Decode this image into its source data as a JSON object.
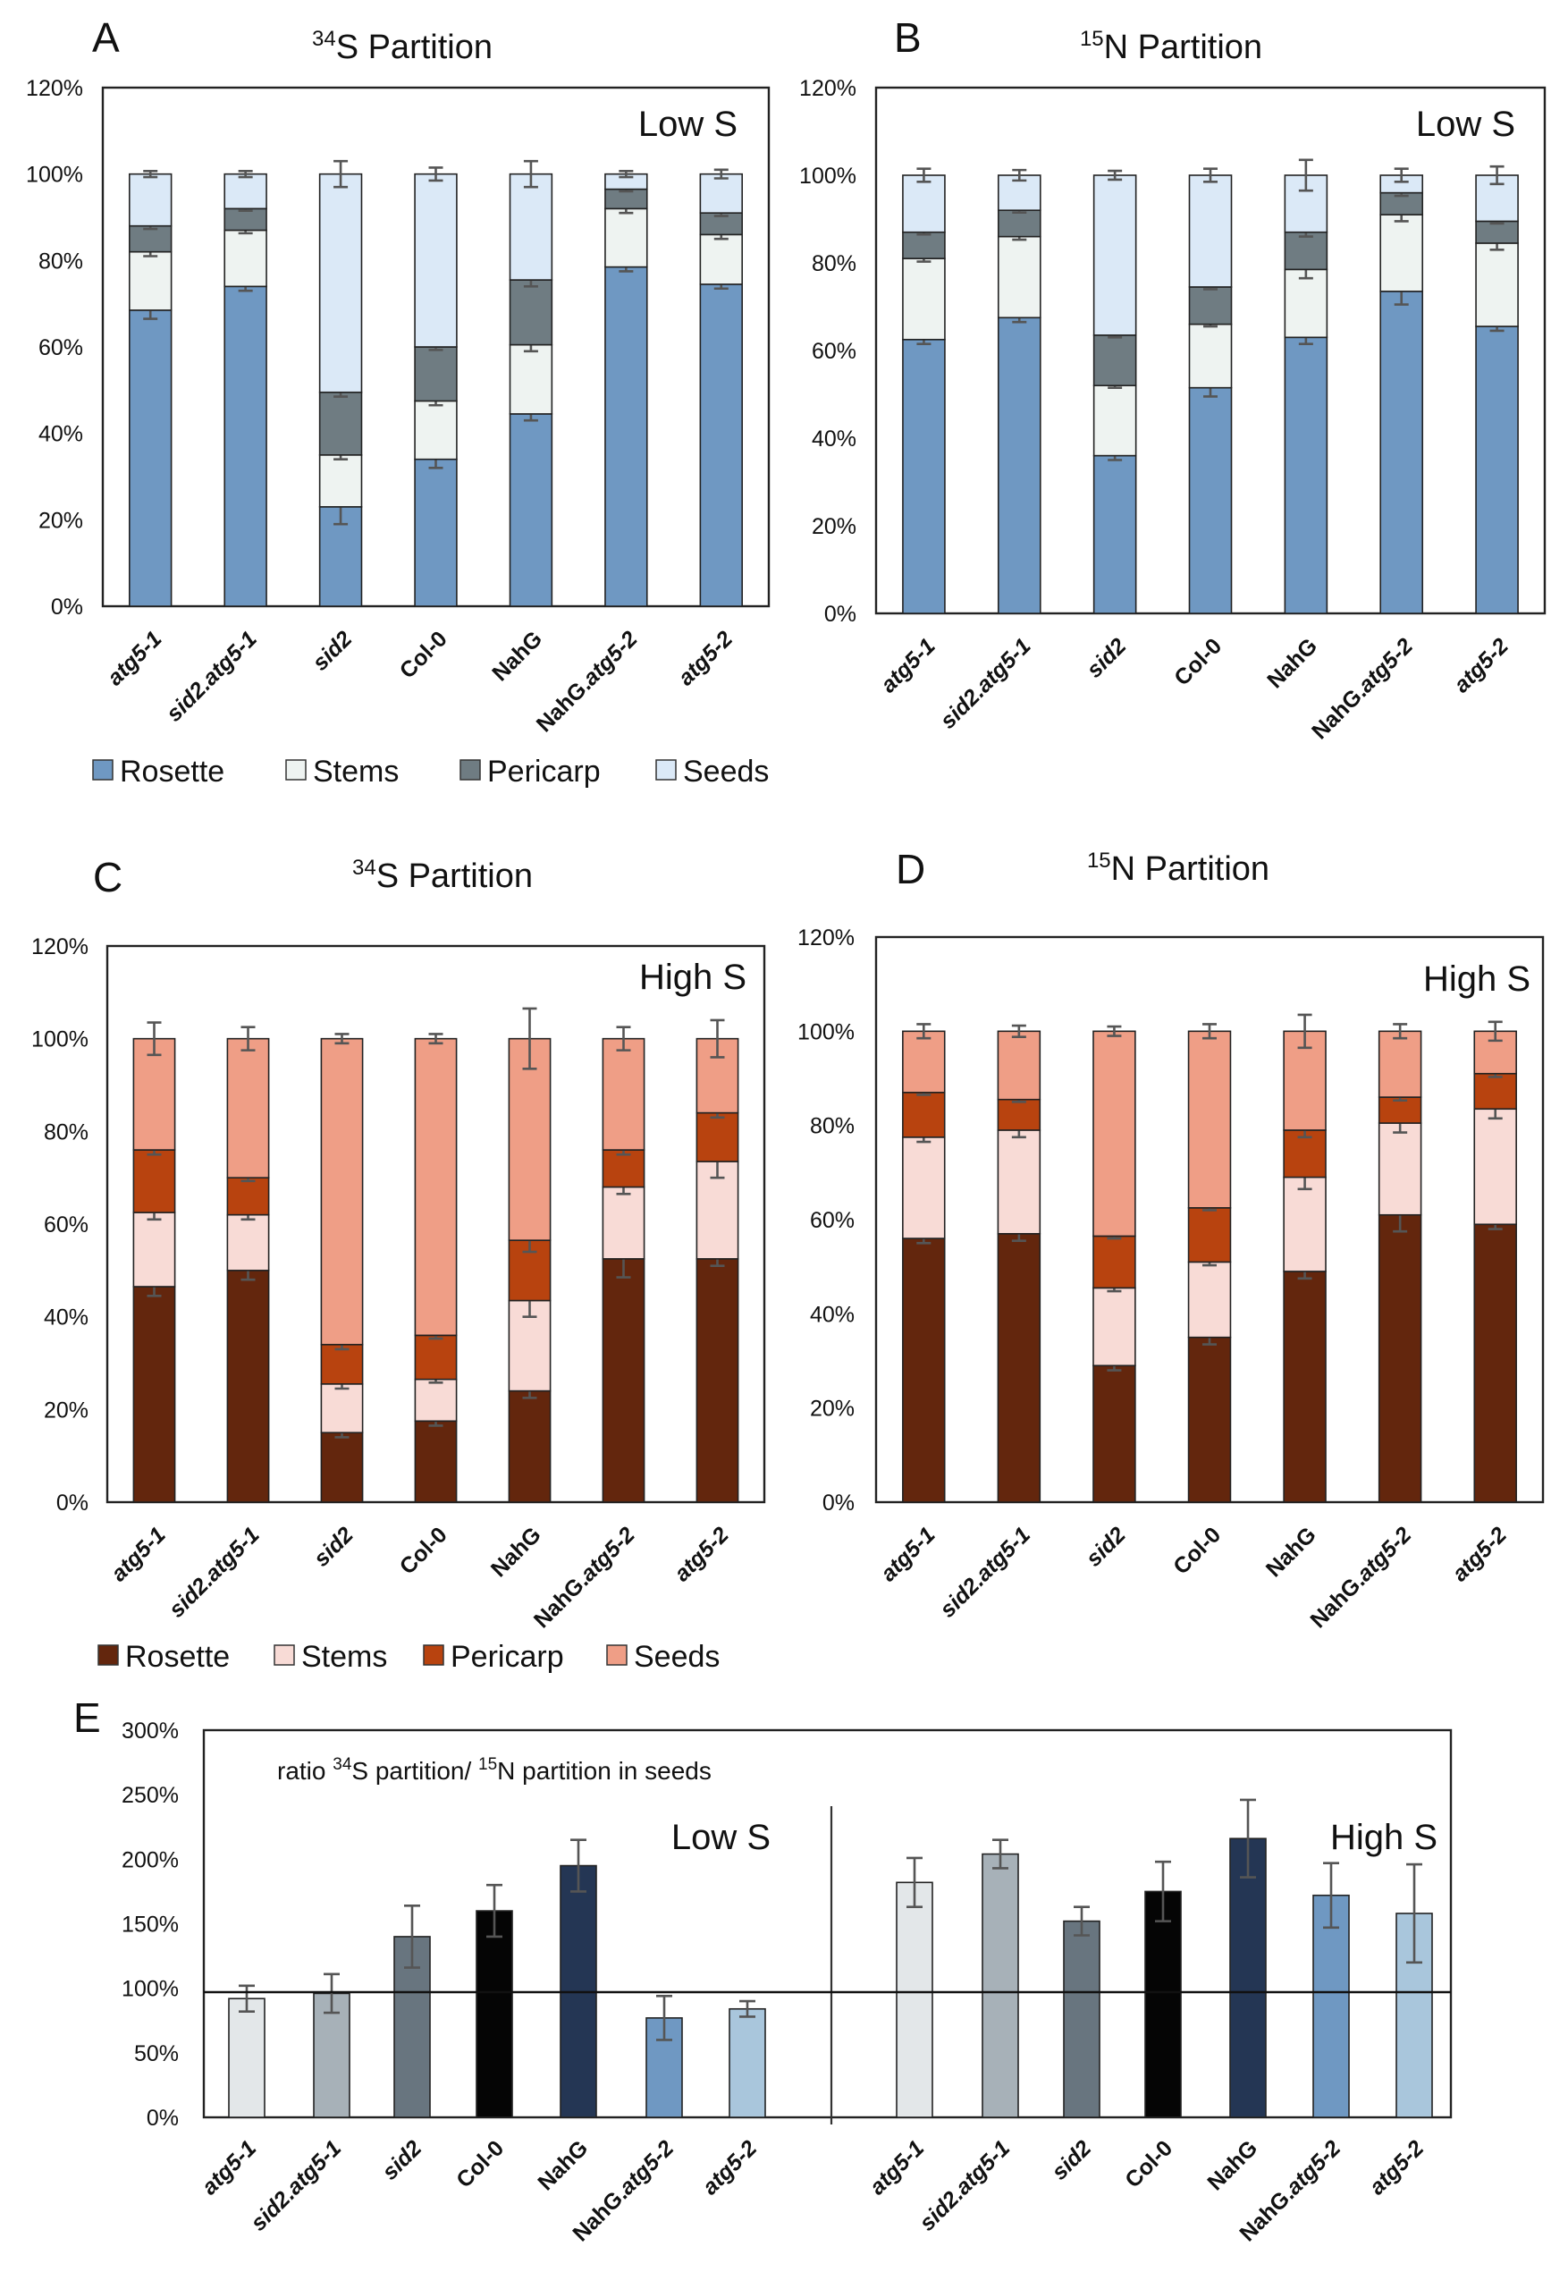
{
  "colors": {
    "low_s": {
      "Rosette": "#6f98c2",
      "Stems": "#eef3f1",
      "Pericarp": "#6f7c82",
      "Seeds": "#dbe9f7"
    },
    "high_s": {
      "Rosette": "#63260d",
      "Stems": "#f8dbd6",
      "Pericarp": "#b8430f",
      "Seeds": "#ef9e86"
    },
    "ratio": [
      "#e3e7e9",
      "#a7b1b8",
      "#68757f",
      "#050505",
      "#243654",
      "#6f98c2",
      "#a9c6dc"
    ]
  },
  "legend_low": [
    {
      "label": "Rosette",
      "color": "#6f98c2"
    },
    {
      "label": "Stems",
      "color": "#eef3f1"
    },
    {
      "label": "Pericarp",
      "color": "#6f7c82"
    },
    {
      "label": "Seeds",
      "color": "#dbe9f7"
    }
  ],
  "legend_high": [
    {
      "label": "Rosette",
      "color": "#63260d"
    },
    {
      "label": "Stems",
      "color": "#f8dbd6"
    },
    {
      "label": "Pericarp",
      "color": "#b8430f"
    },
    {
      "label": "Seeds",
      "color": "#ef9e86"
    }
  ],
  "chart_data": [
    {
      "panel": "A",
      "type": "bar",
      "stacked": true,
      "palette": "low_s",
      "title": "34S Partition",
      "title_sup": "34",
      "title_rest": "S Partition",
      "condition": "Low S",
      "legend": "legend_low",
      "categories": [
        "atg5-1",
        "sid2.atg5-1",
        "sid2",
        "Col-0",
        "NahG",
        "NahG.atg5-2",
        "atg5-2"
      ],
      "ylim": [
        0,
        120
      ],
      "yticks": [
        0,
        20,
        40,
        60,
        80,
        100,
        120
      ],
      "ytick_suffix": "%",
      "series": [
        {
          "name": "Rosette",
          "values": [
            68.5,
            74,
            23,
            34,
            44.5,
            78.5,
            74.5
          ]
        },
        {
          "name": "Stems",
          "values": [
            13.5,
            13,
            12,
            13.5,
            16,
            13.5,
            11.5
          ]
        },
        {
          "name": "Pericarp",
          "values": [
            6,
            5,
            14.5,
            12.5,
            15,
            4.5,
            5
          ]
        },
        {
          "name": "Seeds",
          "values": [
            12,
            8,
            50.5,
            40,
            24.5,
            3.5,
            9
          ]
        }
      ],
      "errors": [
        {
          "name": "Rosette",
          "values": [
            2,
            1,
            4,
            2,
            1.5,
            1,
            1
          ]
        },
        {
          "name": "Stems",
          "values": [
            1,
            0.7,
            1,
            1,
            1.5,
            1,
            1
          ]
        },
        {
          "name": "Pericarp",
          "values": [
            0.7,
            0.5,
            1,
            0.7,
            1.5,
            0.5,
            0.7
          ]
        },
        {
          "name": "Seeds",
          "values": [
            0.7,
            0.7,
            3,
            1.5,
            3,
            0.7,
            1
          ]
        }
      ]
    },
    {
      "panel": "B",
      "type": "bar",
      "stacked": true,
      "palette": "low_s",
      "title": "15N Partition",
      "title_sup": "15",
      "title_rest": "N Partition",
      "condition": "Low S",
      "legend": "legend_low",
      "categories": [
        "atg5-1",
        "sid2.atg5-1",
        "sid2",
        "Col-0",
        "NahG",
        "NahG.atg5-2",
        "atg5-2"
      ],
      "ylim": [
        0,
        120
      ],
      "yticks": [
        0,
        20,
        40,
        60,
        80,
        100,
        120
      ],
      "ytick_suffix": "%",
      "series": [
        {
          "name": "Rosette",
          "values": [
            62.5,
            67.5,
            36,
            51.5,
            63,
            73.5,
            65.5
          ]
        },
        {
          "name": "Stems",
          "values": [
            18.5,
            18.5,
            16,
            14.5,
            15.5,
            17.5,
            19
          ]
        },
        {
          "name": "Pericarp",
          "values": [
            6,
            6,
            11.5,
            8.5,
            8.5,
            5,
            5
          ]
        },
        {
          "name": "Seeds",
          "values": [
            13,
            8,
            36.5,
            25.5,
            13,
            4,
            10.5
          ]
        }
      ],
      "errors": [
        {
          "name": "Rosette",
          "values": [
            1,
            1,
            1,
            2,
            1.5,
            3,
            1
          ]
        },
        {
          "name": "Stems",
          "values": [
            0.7,
            0.7,
            0.5,
            0.5,
            2,
            1.5,
            1.5
          ]
        },
        {
          "name": "Pericarp",
          "values": [
            0.5,
            0.5,
            0.5,
            0.5,
            1,
            0.7,
            0.5
          ]
        },
        {
          "name": "Seeds",
          "values": [
            1.5,
            1.2,
            1,
            1.5,
            3.5,
            1.5,
            2
          ]
        }
      ]
    },
    {
      "panel": "C",
      "type": "bar",
      "stacked": true,
      "palette": "high_s",
      "title": "34S Partition",
      "title_sup": "34",
      "title_rest": "S Partition",
      "condition": "High S",
      "legend": "legend_high",
      "categories": [
        "atg5-1",
        "sid2.atg5-1",
        "sid2",
        "Col-0",
        "NahG",
        "NahG.atg5-2",
        "atg5-2"
      ],
      "ylim": [
        0,
        120
      ],
      "yticks": [
        0,
        20,
        40,
        60,
        80,
        100,
        120
      ],
      "ytick_suffix": "%",
      "series": [
        {
          "name": "Rosette",
          "values": [
            46.5,
            50,
            15,
            17.5,
            24,
            52.5,
            52.5
          ]
        },
        {
          "name": "Stems",
          "values": [
            16,
            12,
            10.5,
            9,
            19.5,
            15.5,
            21
          ]
        },
        {
          "name": "Pericarp",
          "values": [
            13.5,
            8,
            8.5,
            9.5,
            13,
            8,
            10.5
          ]
        },
        {
          "name": "Seeds",
          "values": [
            24,
            30,
            66,
            64,
            43.5,
            24,
            16
          ]
        }
      ],
      "errors": [
        {
          "name": "Rosette",
          "values": [
            2,
            2,
            1,
            1,
            1.5,
            4,
            1.5
          ]
        },
        {
          "name": "Stems",
          "values": [
            1.5,
            1,
            1,
            0.7,
            3.5,
            1.5,
            3.5
          ]
        },
        {
          "name": "Pericarp",
          "values": [
            1,
            0.7,
            1,
            0.7,
            2.5,
            1,
            1
          ]
        },
        {
          "name": "Seeds",
          "values": [
            3.5,
            2.5,
            1,
            1,
            6.5,
            2.5,
            4
          ]
        }
      ]
    },
    {
      "panel": "D",
      "type": "bar",
      "stacked": true,
      "palette": "high_s",
      "title": "15N Partition",
      "title_sup": "15",
      "title_rest": "N Partition",
      "condition": "High S",
      "legend": "legend_high",
      "categories": [
        "atg5-1",
        "sid2.atg5-1",
        "sid2",
        "Col-0",
        "NahG",
        "NahG.atg5-2",
        "atg5-2"
      ],
      "ylim": [
        0,
        120
      ],
      "yticks": [
        0,
        20,
        40,
        60,
        80,
        100,
        120
      ],
      "ytick_suffix": "%",
      "series": [
        {
          "name": "Rosette",
          "values": [
            56,
            57,
            29,
            35,
            49,
            61,
            59
          ]
        },
        {
          "name": "Stems",
          "values": [
            21.5,
            22,
            16.5,
            16,
            20,
            19.5,
            24.5
          ]
        },
        {
          "name": "Pericarp",
          "values": [
            9.5,
            6.5,
            11,
            11.5,
            10,
            5.5,
            7.5
          ]
        },
        {
          "name": "Seeds",
          "values": [
            13,
            14.5,
            43.5,
            37.5,
            21,
            14,
            9
          ]
        }
      ],
      "errors": [
        {
          "name": "Rosette",
          "values": [
            1,
            1.5,
            1,
            1.5,
            1.5,
            3.5,
            1
          ]
        },
        {
          "name": "Stems",
          "values": [
            1,
            1.5,
            0.7,
            0.7,
            2.5,
            2,
            2
          ]
        },
        {
          "name": "Pericarp",
          "values": [
            0.5,
            0.5,
            0.5,
            0.5,
            1.5,
            0.7,
            0.7
          ]
        },
        {
          "name": "Seeds",
          "values": [
            1.5,
            1.2,
            1,
            1.5,
            3.5,
            1.5,
            2
          ]
        }
      ]
    },
    {
      "panel": "E",
      "type": "bar",
      "stacked": false,
      "title": "ratio 34S partition/ 15N partition in seeds",
      "title_parts": [
        "ratio ",
        "34",
        "S partition/ ",
        "15",
        "N partition in seeds"
      ],
      "ylim": [
        0,
        300
      ],
      "yticks": [
        0,
        50,
        100,
        150,
        200,
        250,
        300
      ],
      "ytick_suffix": "%",
      "reference_line": 97,
      "groups": [
        {
          "condition": "Low S",
          "categories": [
            "atg5-1",
            "sid2.atg5-1",
            "sid2",
            "Col-0",
            "NahG",
            "NahG.atg5-2",
            "atg5-2"
          ],
          "values": [
            92,
            96,
            140,
            160,
            195,
            77,
            84
          ],
          "errors": [
            10,
            15,
            24,
            20,
            20,
            17,
            6
          ]
        },
        {
          "condition": "High S",
          "categories": [
            "atg5-1",
            "sid2.atg5-1",
            "sid2",
            "Col-0",
            "NahG",
            "NahG.atg5-2",
            "atg5-2"
          ],
          "values": [
            182,
            204,
            152,
            175,
            216,
            172,
            158
          ],
          "errors": [
            19,
            11,
            11,
            23,
            30,
            25,
            38
          ]
        }
      ]
    }
  ]
}
